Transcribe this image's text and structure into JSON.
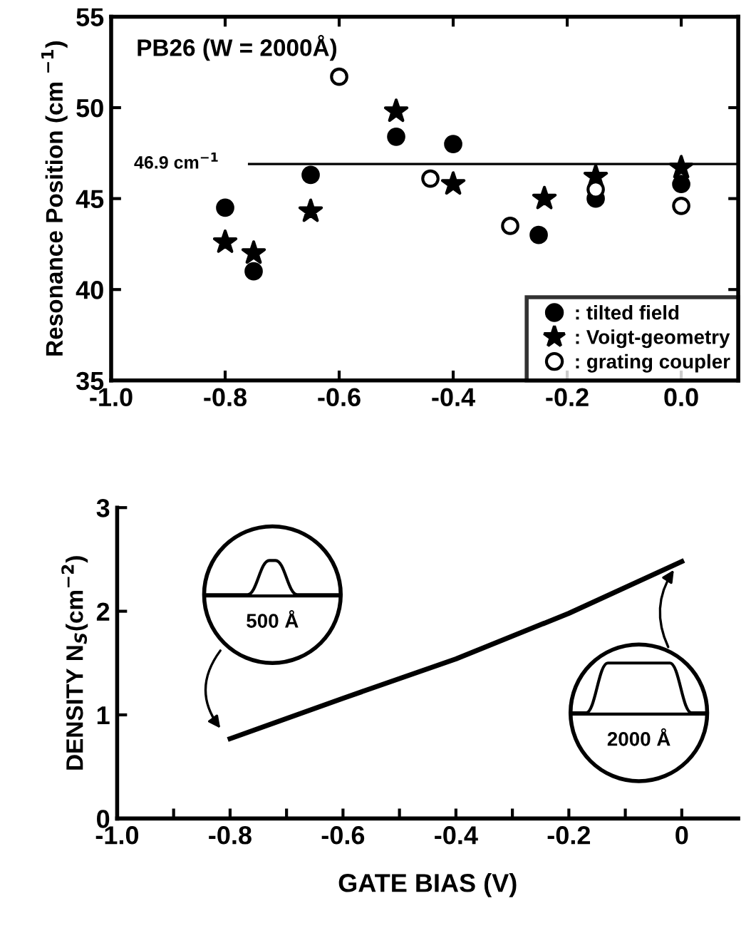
{
  "chart_data": [
    {
      "type": "scatter",
      "ylabel": "Resonance Position (cm $^{−1}$)",
      "annotations": [
        "PB26 (W = 2000Å)"
      ],
      "series": [
        {
          "name": ": tilted field",
          "color": "#000000",
          "marker": "circle",
          "x": [
            -0.8,
            -0.75,
            -0.65,
            -0.5,
            -0.4,
            -0.25,
            -0.15,
            0.0
          ],
          "values": [
            44.5,
            41.0,
            46.3,
            48.4,
            48.0,
            43.0,
            45.0,
            45.8
          ]
        },
        {
          "name": ": Voigt-geometry",
          "color": "#000000",
          "marker": "star",
          "x": [
            -0.8,
            -0.75,
            -0.65,
            -0.5,
            -0.4,
            -0.24,
            -0.15,
            0.0
          ],
          "values": [
            42.6,
            42.0,
            44.3,
            49.8,
            45.8,
            45.0,
            46.2,
            46.7
          ]
        },
        {
          "name": ": grating coupler",
          "color": "#ffffff",
          "marker": "circle",
          "x": [
            -0.6,
            -0.44,
            -0.3,
            -0.15,
            0.0
          ],
          "values": [
            51.7,
            46.1,
            43.5,
            45.5,
            44.6
          ]
        }
      ],
      "ref_lines": [
        {
          "axis": "y",
          "value": 46.9,
          "label": "46.9 cm$^{−1}$",
          "color": "#000000",
          "line_style": "solid"
        }
      ],
      "xlim": [
        -1.0,
        0.1
      ],
      "ylim": [
        35,
        55
      ],
      "xticks": [
        {
          "value": -1.0,
          "label": "-1.0"
        },
        {
          "value": -0.8,
          "label": "-0.8"
        },
        {
          "value": -0.6,
          "label": "-0.6"
        },
        {
          "value": -0.4,
          "label": "-0.4"
        },
        {
          "value": -0.2,
          "label": "-0.2"
        },
        {
          "value": 0.0,
          "label": "0.0"
        }
      ],
      "yticks": [
        35,
        40,
        45,
        50,
        55
      ],
      "grid": false,
      "legend": "bottom right"
    },
    {
      "type": "line",
      "xlabel": "GATE BIAS (V)",
      "ylabel": "DENSITY N$_{S}$(cm$^{−2}$)",
      "annotations": [
        "500 Å",
        "2000 Å"
      ],
      "series": [
        {
          "color": "#000000",
          "x": [
            -0.8,
            -0.6,
            -0.4,
            -0.2,
            0.0
          ],
          "values": [
            0.77,
            1.16,
            1.54,
            1.98,
            2.48
          ]
        }
      ],
      "xlim": [
        -1.0,
        0.1
      ],
      "ylim": [
        0,
        3
      ],
      "xticks": [
        {
          "value": -1.0,
          "label": "-1.0"
        },
        {
          "value": -0.9,
          "label": null
        },
        {
          "value": -0.8,
          "label": "-0.8"
        },
        {
          "value": -0.7,
          "label": null
        },
        {
          "value": -0.6,
          "label": "-0.6"
        },
        {
          "value": -0.5,
          "label": null
        },
        {
          "value": -0.4,
          "label": "-0.4"
        },
        {
          "value": -0.3,
          "label": null
        },
        {
          "value": -0.2,
          "label": "-0.2"
        },
        {
          "value": -0.1,
          "label": null
        },
        {
          "value": 0.0,
          "label": "0"
        }
      ],
      "yticks": [
        0,
        1,
        2,
        3
      ],
      "grid": false,
      "line_style": "solid",
      "marker": "none"
    }
  ]
}
